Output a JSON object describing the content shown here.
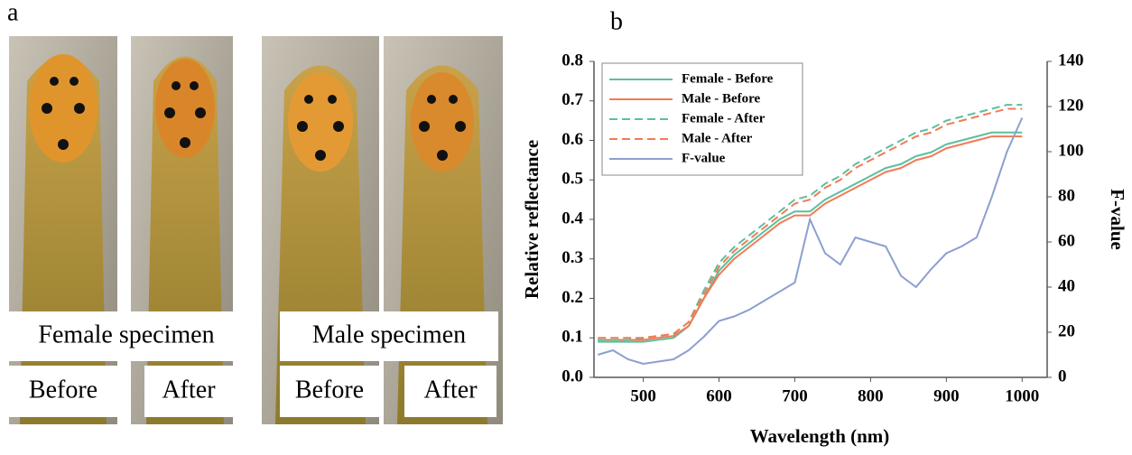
{
  "panel_a": {
    "label": "a",
    "female": {
      "title": "Female specimen",
      "before": "Before",
      "after": "After"
    },
    "male": {
      "title": "Male specimen",
      "before": "Before",
      "after": "After"
    }
  },
  "panel_b": {
    "label": "b"
  },
  "chart_data": {
    "type": "line",
    "x_label": "Wavelength (nm)",
    "y_label": "Relative reflectance",
    "y2_label": "F-value",
    "x": [
      440,
      460,
      480,
      500,
      520,
      540,
      560,
      580,
      600,
      620,
      640,
      660,
      680,
      700,
      720,
      740,
      760,
      780,
      800,
      820,
      840,
      860,
      880,
      900,
      920,
      940,
      960,
      980,
      1000
    ],
    "series": [
      {
        "name": "Female - Before",
        "color": "#5cbf9f",
        "linestyle": "solid",
        "values": [
          0.09,
          0.09,
          0.09,
          0.09,
          0.095,
          0.1,
          0.13,
          0.2,
          0.27,
          0.31,
          0.34,
          0.37,
          0.4,
          0.42,
          0.42,
          0.45,
          0.47,
          0.49,
          0.51,
          0.53,
          0.54,
          0.56,
          0.57,
          0.59,
          0.6,
          0.61,
          0.62,
          0.62,
          0.62
        ]
      },
      {
        "name": "Male - Before",
        "color": "#f27b55",
        "linestyle": "solid",
        "values": [
          0.095,
          0.095,
          0.095,
          0.095,
          0.1,
          0.105,
          0.13,
          0.2,
          0.26,
          0.3,
          0.33,
          0.36,
          0.39,
          0.41,
          0.41,
          0.44,
          0.46,
          0.48,
          0.5,
          0.52,
          0.53,
          0.55,
          0.56,
          0.58,
          0.59,
          0.6,
          0.61,
          0.61,
          0.61
        ]
      },
      {
        "name": "Female - After",
        "color": "#5cbf9f",
        "linestyle": "dashed",
        "values": [
          0.095,
          0.095,
          0.095,
          0.1,
          0.105,
          0.11,
          0.14,
          0.22,
          0.29,
          0.33,
          0.36,
          0.39,
          0.42,
          0.45,
          0.46,
          0.49,
          0.51,
          0.54,
          0.56,
          0.58,
          0.6,
          0.62,
          0.63,
          0.65,
          0.66,
          0.67,
          0.68,
          0.69,
          0.69
        ]
      },
      {
        "name": "Male - After",
        "color": "#f27b55",
        "linestyle": "dashed",
        "values": [
          0.1,
          0.1,
          0.1,
          0.1,
          0.105,
          0.11,
          0.14,
          0.21,
          0.28,
          0.32,
          0.35,
          0.38,
          0.41,
          0.44,
          0.45,
          0.48,
          0.5,
          0.53,
          0.55,
          0.57,
          0.59,
          0.61,
          0.62,
          0.64,
          0.65,
          0.66,
          0.67,
          0.68,
          0.68
        ]
      },
      {
        "name": "F-value",
        "color": "#8d9fd1",
        "linestyle": "solid",
        "axis": "y2",
        "values": [
          10,
          12,
          8,
          6,
          7,
          8,
          12,
          18,
          25,
          27,
          30,
          34,
          38,
          42,
          70,
          55,
          50,
          62,
          60,
          58,
          45,
          40,
          48,
          55,
          58,
          62,
          80,
          100,
          115
        ]
      }
    ],
    "xlim": [
      435,
      1033
    ],
    "xticks": [
      500,
      600,
      700,
      800,
      900,
      1000
    ],
    "ylim": [
      0,
      0.8
    ],
    "yticks": [
      {
        "value": 0,
        "label": "0.0"
      },
      0.1,
      0.2,
      0.3,
      0.4,
      0.5,
      0.6,
      0.7,
      0.8
    ],
    "y2lim": [
      0,
      140
    ],
    "y2ticks": [
      0,
      20,
      40,
      60,
      80,
      100,
      120,
      140
    ],
    "legend": "upper left"
  }
}
